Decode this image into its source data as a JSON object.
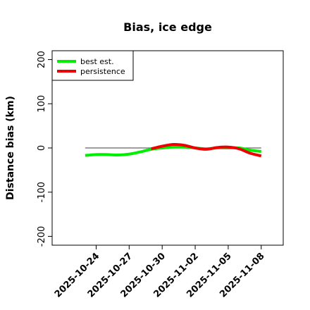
{
  "chart_data": {
    "type": "line",
    "title": "Bias, ice edge",
    "xlabel": "",
    "ylabel": "Distance bias (km)",
    "ylim": [
      -220,
      220
    ],
    "xlim": [
      "2025-10-20",
      "2025-11-10"
    ],
    "yticks": [
      -200,
      -100,
      0,
      100,
      200
    ],
    "ytick_labels": [
      "-200",
      "-100",
      "0",
      "100",
      "200"
    ],
    "xticks": [
      "2025-10-24",
      "2025-10-27",
      "2025-10-30",
      "2025-11-02",
      "2025-11-05",
      "2025-11-08"
    ],
    "grid": false,
    "legend_position": "top-left",
    "reference_line": {
      "y": 0,
      "x_start": "2025-10-23",
      "x_end": "2025-11-08",
      "color": "#666666"
    },
    "x": [
      "2025-10-23",
      "2025-10-24",
      "2025-10-25",
      "2025-10-26",
      "2025-10-27",
      "2025-10-28",
      "2025-10-29",
      "2025-10-30",
      "2025-10-31",
      "2025-11-01",
      "2025-11-02",
      "2025-11-03",
      "2025-11-04",
      "2025-11-05",
      "2025-11-06",
      "2025-11-07",
      "2025-11-08"
    ],
    "series": [
      {
        "name": "best est.",
        "color": "#00ee00",
        "values": [
          -17,
          -15,
          -15,
          -16,
          -14,
          -9,
          -3,
          0,
          2,
          2,
          0,
          -2,
          0,
          0,
          0,
          -5,
          -8
        ]
      },
      {
        "name": "persistence",
        "color": "#ee0000",
        "values": [
          null,
          null,
          null,
          null,
          null,
          null,
          -2,
          4,
          8,
          6,
          0,
          -3,
          1,
          2,
          -2,
          -12,
          -18
        ]
      }
    ]
  }
}
